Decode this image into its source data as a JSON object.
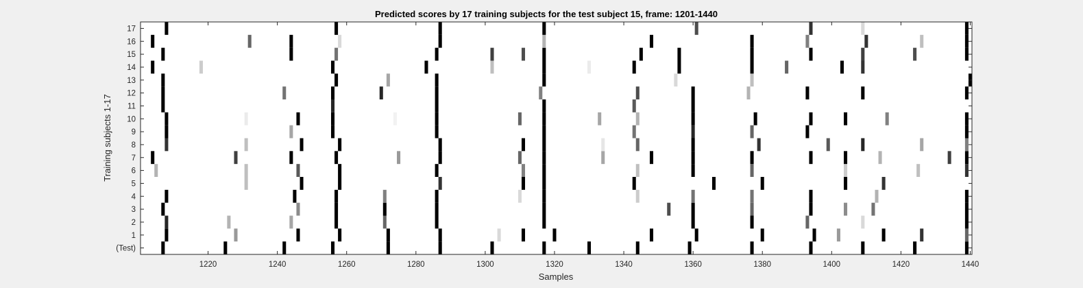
{
  "chart_data": {
    "type": "heatmap",
    "title": "Predicted scores by 17 training subjects for the test subject 15, frame: 1201-1440",
    "xlabel": "Samples",
    "ylabel": "Training subjects 1-17",
    "xlim": [
      1201,
      1440
    ],
    "x_ticks": [
      "1220",
      "1240",
      "1260",
      "1280",
      "1300",
      "1320",
      "1340",
      "1360",
      "1380",
      "1400",
      "1420",
      "1440"
    ],
    "row_labels": [
      "(Test)",
      "1",
      "2",
      "3",
      "4",
      "5",
      "6",
      "7",
      "8",
      "9",
      "10",
      "11",
      "12",
      "13",
      "14",
      "15",
      "16",
      "17"
    ],
    "colormap": "gray (white = 0, black = 1)",
    "background_value": 0,
    "marks": [
      {
        "row": "(Test)",
        "x": 1207,
        "v": 1
      },
      {
        "row": "(Test)",
        "x": 1225,
        "v": 1
      },
      {
        "row": "(Test)",
        "x": 1242,
        "v": 1
      },
      {
        "row": "(Test)",
        "x": 1256,
        "v": 1
      },
      {
        "row": "(Test)",
        "x": 1272,
        "v": 1
      },
      {
        "row": "(Test)",
        "x": 1287,
        "v": 1
      },
      {
        "row": "(Test)",
        "x": 1302,
        "v": 1
      },
      {
        "row": "(Test)",
        "x": 1317,
        "v": 1
      },
      {
        "row": "(Test)",
        "x": 1330,
        "v": 1
      },
      {
        "row": "(Test)",
        "x": 1344,
        "v": 1
      },
      {
        "row": "(Test)",
        "x": 1359,
        "v": 1
      },
      {
        "row": "(Test)",
        "x": 1377,
        "v": 1
      },
      {
        "row": "(Test)",
        "x": 1394,
        "v": 1
      },
      {
        "row": "(Test)",
        "x": 1409,
        "v": 1
      },
      {
        "row": "(Test)",
        "x": 1424,
        "v": 1
      },
      {
        "row": "(Test)",
        "x": 1439,
        "v": 1
      },
      {
        "row": "1",
        "x": 1208,
        "v": 1
      },
      {
        "row": "1",
        "x": 1228,
        "v": 0.4
      },
      {
        "row": "1",
        "x": 1246,
        "v": 1
      },
      {
        "row": "1",
        "x": 1258,
        "v": 1
      },
      {
        "row": "1",
        "x": 1272,
        "v": 1
      },
      {
        "row": "1",
        "x": 1287,
        "v": 1
      },
      {
        "row": "1",
        "x": 1304,
        "v": 0.15
      },
      {
        "row": "1",
        "x": 1311,
        "v": 1
      },
      {
        "row": "1",
        "x": 1320,
        "v": 1
      },
      {
        "row": "1",
        "x": 1348,
        "v": 1
      },
      {
        "row": "1",
        "x": 1361,
        "v": 1
      },
      {
        "row": "1",
        "x": 1380,
        "v": 1
      },
      {
        "row": "1",
        "x": 1395,
        "v": 1
      },
      {
        "row": "1",
        "x": 1402,
        "v": 0.4
      },
      {
        "row": "1",
        "x": 1415,
        "v": 1
      },
      {
        "row": "1",
        "x": 1426,
        "v": 0.8
      },
      {
        "row": "1",
        "x": 1439,
        "v": 0.6
      },
      {
        "row": "2",
        "x": 1208,
        "v": 0.85
      },
      {
        "row": "2",
        "x": 1226,
        "v": 0.3
      },
      {
        "row": "2",
        "x": 1244,
        "v": 0.35
      },
      {
        "row": "2",
        "x": 1257,
        "v": 1
      },
      {
        "row": "2",
        "x": 1271,
        "v": 0.6
      },
      {
        "row": "2",
        "x": 1286,
        "v": 1
      },
      {
        "row": "2",
        "x": 1317,
        "v": 1
      },
      {
        "row": "2",
        "x": 1360,
        "v": 1
      },
      {
        "row": "2",
        "x": 1377,
        "v": 1
      },
      {
        "row": "2",
        "x": 1393,
        "v": 0.6
      },
      {
        "row": "2",
        "x": 1409,
        "v": 0.15
      },
      {
        "row": "2",
        "x": 1439,
        "v": 1
      },
      {
        "row": "3",
        "x": 1207,
        "v": 1
      },
      {
        "row": "3",
        "x": 1246,
        "v": 0.45
      },
      {
        "row": "3",
        "x": 1257,
        "v": 1
      },
      {
        "row": "3",
        "x": 1271,
        "v": 1
      },
      {
        "row": "3",
        "x": 1286,
        "v": 1
      },
      {
        "row": "3",
        "x": 1317,
        "v": 1
      },
      {
        "row": "3",
        "x": 1353,
        "v": 0.7
      },
      {
        "row": "3",
        "x": 1360,
        "v": 1
      },
      {
        "row": "3",
        "x": 1377,
        "v": 0.6
      },
      {
        "row": "3",
        "x": 1394,
        "v": 1
      },
      {
        "row": "3",
        "x": 1404,
        "v": 0.45
      },
      {
        "row": "3",
        "x": 1412,
        "v": 0.55
      },
      {
        "row": "3",
        "x": 1439,
        "v": 1
      },
      {
        "row": "4",
        "x": 1208,
        "v": 1
      },
      {
        "row": "4",
        "x": 1245,
        "v": 1
      },
      {
        "row": "4",
        "x": 1257,
        "v": 1
      },
      {
        "row": "4",
        "x": 1271,
        "v": 0.5
      },
      {
        "row": "4",
        "x": 1286,
        "v": 1
      },
      {
        "row": "4",
        "x": 1310,
        "v": 0.15
      },
      {
        "row": "4",
        "x": 1317,
        "v": 1
      },
      {
        "row": "4",
        "x": 1344,
        "v": 0.2
      },
      {
        "row": "4",
        "x": 1360,
        "v": 0.55
      },
      {
        "row": "4",
        "x": 1377,
        "v": 0.55
      },
      {
        "row": "4",
        "x": 1394,
        "v": 1
      },
      {
        "row": "4",
        "x": 1413,
        "v": 0.3
      },
      {
        "row": "4",
        "x": 1439,
        "v": 1
      },
      {
        "row": "5",
        "x": 1231,
        "v": 0.25
      },
      {
        "row": "5",
        "x": 1247,
        "v": 1
      },
      {
        "row": "5",
        "x": 1258,
        "v": 1
      },
      {
        "row": "5",
        "x": 1287,
        "v": 0.8
      },
      {
        "row": "5",
        "x": 1311,
        "v": 1
      },
      {
        "row": "5",
        "x": 1317,
        "v": 1
      },
      {
        "row": "5",
        "x": 1343,
        "v": 1
      },
      {
        "row": "5",
        "x": 1366,
        "v": 1
      },
      {
        "row": "5",
        "x": 1380,
        "v": 1
      },
      {
        "row": "5",
        "x": 1404,
        "v": 1
      },
      {
        "row": "5",
        "x": 1415,
        "v": 0.8
      },
      {
        "row": "6",
        "x": 1205,
        "v": 0.3
      },
      {
        "row": "6",
        "x": 1231,
        "v": 0.25
      },
      {
        "row": "6",
        "x": 1246,
        "v": 0.65
      },
      {
        "row": "6",
        "x": 1258,
        "v": 1
      },
      {
        "row": "6",
        "x": 1286,
        "v": 1
      },
      {
        "row": "6",
        "x": 1311,
        "v": 0.5
      },
      {
        "row": "6",
        "x": 1317,
        "v": 1
      },
      {
        "row": "6",
        "x": 1344,
        "v": 0.25
      },
      {
        "row": "6",
        "x": 1360,
        "v": 1
      },
      {
        "row": "6",
        "x": 1377,
        "v": 0.6
      },
      {
        "row": "6",
        "x": 1404,
        "v": 0.2
      },
      {
        "row": "6",
        "x": 1425,
        "v": 0.25
      },
      {
        "row": "6",
        "x": 1439,
        "v": 0.8
      },
      {
        "row": "7",
        "x": 1204,
        "v": 1
      },
      {
        "row": "7",
        "x": 1228,
        "v": 0.75
      },
      {
        "row": "7",
        "x": 1244,
        "v": 1
      },
      {
        "row": "7",
        "x": 1257,
        "v": 1
      },
      {
        "row": "7",
        "x": 1275,
        "v": 0.4
      },
      {
        "row": "7",
        "x": 1287,
        "v": 1
      },
      {
        "row": "7",
        "x": 1310,
        "v": 0.6
      },
      {
        "row": "7",
        "x": 1317,
        "v": 1
      },
      {
        "row": "7",
        "x": 1334,
        "v": 0.35
      },
      {
        "row": "7",
        "x": 1348,
        "v": 1
      },
      {
        "row": "7",
        "x": 1360,
        "v": 1
      },
      {
        "row": "7",
        "x": 1377,
        "v": 1
      },
      {
        "row": "7",
        "x": 1394,
        "v": 1
      },
      {
        "row": "7",
        "x": 1404,
        "v": 1
      },
      {
        "row": "7",
        "x": 1414,
        "v": 0.3
      },
      {
        "row": "7",
        "x": 1434,
        "v": 0.75
      },
      {
        "row": "7",
        "x": 1439,
        "v": 1
      },
      {
        "row": "8",
        "x": 1208,
        "v": 0.8
      },
      {
        "row": "8",
        "x": 1231,
        "v": 0.25
      },
      {
        "row": "8",
        "x": 1247,
        "v": 1
      },
      {
        "row": "8",
        "x": 1258,
        "v": 1
      },
      {
        "row": "8",
        "x": 1287,
        "v": 1
      },
      {
        "row": "8",
        "x": 1311,
        "v": 1
      },
      {
        "row": "8",
        "x": 1317,
        "v": 1
      },
      {
        "row": "8",
        "x": 1334,
        "v": 0.1
      },
      {
        "row": "8",
        "x": 1344,
        "v": 0.6
      },
      {
        "row": "8",
        "x": 1360,
        "v": 1
      },
      {
        "row": "8",
        "x": 1379,
        "v": 0.8
      },
      {
        "row": "8",
        "x": 1399,
        "v": 0.65
      },
      {
        "row": "8",
        "x": 1409,
        "v": 0.85
      },
      {
        "row": "8",
        "x": 1426,
        "v": 0.35
      },
      {
        "row": "8",
        "x": 1439,
        "v": 0.5
      },
      {
        "row": "9",
        "x": 1208,
        "v": 1
      },
      {
        "row": "9",
        "x": 1244,
        "v": 0.35
      },
      {
        "row": "9",
        "x": 1256,
        "v": 1
      },
      {
        "row": "9",
        "x": 1286,
        "v": 1
      },
      {
        "row": "9",
        "x": 1317,
        "v": 1
      },
      {
        "row": "9",
        "x": 1343,
        "v": 0.55
      },
      {
        "row": "9",
        "x": 1360,
        "v": 0.85
      },
      {
        "row": "9",
        "x": 1377,
        "v": 0.6
      },
      {
        "row": "9",
        "x": 1393,
        "v": 1
      },
      {
        "row": "9",
        "x": 1439,
        "v": 1
      },
      {
        "row": "10",
        "x": 1208,
        "v": 1
      },
      {
        "row": "10",
        "x": 1231,
        "v": 0.08
      },
      {
        "row": "10",
        "x": 1246,
        "v": 1
      },
      {
        "row": "10",
        "x": 1256,
        "v": 1
      },
      {
        "row": "10",
        "x": 1274,
        "v": 0.05
      },
      {
        "row": "10",
        "x": 1286,
        "v": 1
      },
      {
        "row": "10",
        "x": 1310,
        "v": 0.6
      },
      {
        "row": "10",
        "x": 1317,
        "v": 1
      },
      {
        "row": "10",
        "x": 1333,
        "v": 0.35
      },
      {
        "row": "10",
        "x": 1344,
        "v": 0.3
      },
      {
        "row": "10",
        "x": 1360,
        "v": 1
      },
      {
        "row": "10",
        "x": 1378,
        "v": 1
      },
      {
        "row": "10",
        "x": 1394,
        "v": 1
      },
      {
        "row": "10",
        "x": 1404,
        "v": 1
      },
      {
        "row": "10",
        "x": 1416,
        "v": 0.5
      },
      {
        "row": "10",
        "x": 1439,
        "v": 1
      },
      {
        "row": "11",
        "x": 1207,
        "v": 1
      },
      {
        "row": "11",
        "x": 1256,
        "v": 0.85
      },
      {
        "row": "11",
        "x": 1286,
        "v": 1
      },
      {
        "row": "11",
        "x": 1317,
        "v": 1
      },
      {
        "row": "11",
        "x": 1343,
        "v": 0.65
      },
      {
        "row": "11",
        "x": 1360,
        "v": 1
      },
      {
        "row": "12",
        "x": 1207,
        "v": 1
      },
      {
        "row": "12",
        "x": 1242,
        "v": 0.55
      },
      {
        "row": "12",
        "x": 1256,
        "v": 1
      },
      {
        "row": "12",
        "x": 1270,
        "v": 0.85
      },
      {
        "row": "12",
        "x": 1286,
        "v": 1
      },
      {
        "row": "12",
        "x": 1316,
        "v": 0.5
      },
      {
        "row": "12",
        "x": 1344,
        "v": 0.7
      },
      {
        "row": "12",
        "x": 1360,
        "v": 1
      },
      {
        "row": "12",
        "x": 1376,
        "v": 0.3
      },
      {
        "row": "12",
        "x": 1393,
        "v": 1
      },
      {
        "row": "12",
        "x": 1409,
        "v": 1
      },
      {
        "row": "12",
        "x": 1439,
        "v": 1
      },
      {
        "row": "13",
        "x": 1207,
        "v": 1
      },
      {
        "row": "13",
        "x": 1257,
        "v": 1
      },
      {
        "row": "13",
        "x": 1272,
        "v": 0.35
      },
      {
        "row": "13",
        "x": 1286,
        "v": 1
      },
      {
        "row": "13",
        "x": 1317,
        "v": 1
      },
      {
        "row": "13",
        "x": 1355,
        "v": 0.15
      },
      {
        "row": "13",
        "x": 1377,
        "v": 0.25
      },
      {
        "row": "13",
        "x": 1440,
        "v": 1
      },
      {
        "row": "14",
        "x": 1204,
        "v": 1
      },
      {
        "row": "14",
        "x": 1218,
        "v": 0.2
      },
      {
        "row": "14",
        "x": 1256,
        "v": 1
      },
      {
        "row": "14",
        "x": 1283,
        "v": 1
      },
      {
        "row": "14",
        "x": 1302,
        "v": 0.25
      },
      {
        "row": "14",
        "x": 1317,
        "v": 1
      },
      {
        "row": "14",
        "x": 1330,
        "v": 0.08
      },
      {
        "row": "14",
        "x": 1343,
        "v": 1
      },
      {
        "row": "14",
        "x": 1356,
        "v": 1
      },
      {
        "row": "14",
        "x": 1377,
        "v": 1
      },
      {
        "row": "14",
        "x": 1387,
        "v": 0.6
      },
      {
        "row": "14",
        "x": 1403,
        "v": 1
      },
      {
        "row": "14",
        "x": 1409,
        "v": 0.8
      },
      {
        "row": "15",
        "x": 1207,
        "v": 1
      },
      {
        "row": "15",
        "x": 1244,
        "v": 1
      },
      {
        "row": "15",
        "x": 1257,
        "v": 0.55
      },
      {
        "row": "15",
        "x": 1286,
        "v": 1
      },
      {
        "row": "15",
        "x": 1302,
        "v": 0.75
      },
      {
        "row": "15",
        "x": 1311,
        "v": 0.7
      },
      {
        "row": "15",
        "x": 1317,
        "v": 1
      },
      {
        "row": "15",
        "x": 1345,
        "v": 1
      },
      {
        "row": "15",
        "x": 1356,
        "v": 1
      },
      {
        "row": "15",
        "x": 1377,
        "v": 1
      },
      {
        "row": "15",
        "x": 1394,
        "v": 1
      },
      {
        "row": "15",
        "x": 1409,
        "v": 0.75
      },
      {
        "row": "15",
        "x": 1424,
        "v": 0.7
      },
      {
        "row": "15",
        "x": 1439,
        "v": 1
      },
      {
        "row": "16",
        "x": 1204,
        "v": 1
      },
      {
        "row": "16",
        "x": 1232,
        "v": 0.6
      },
      {
        "row": "16",
        "x": 1244,
        "v": 1
      },
      {
        "row": "16",
        "x": 1258,
        "v": 0.15
      },
      {
        "row": "16",
        "x": 1287,
        "v": 1
      },
      {
        "row": "16",
        "x": 1317,
        "v": 0.3
      },
      {
        "row": "16",
        "x": 1348,
        "v": 1
      },
      {
        "row": "16",
        "x": 1377,
        "v": 1
      },
      {
        "row": "16",
        "x": 1393,
        "v": 0.5
      },
      {
        "row": "16",
        "x": 1410,
        "v": 0.8
      },
      {
        "row": "16",
        "x": 1426,
        "v": 0.25
      },
      {
        "row": "16",
        "x": 1439,
        "v": 1
      },
      {
        "row": "17",
        "x": 1208,
        "v": 1
      },
      {
        "row": "17",
        "x": 1257,
        "v": 1
      },
      {
        "row": "17",
        "x": 1287,
        "v": 1
      },
      {
        "row": "17",
        "x": 1317,
        "v": 1
      },
      {
        "row": "17",
        "x": 1361,
        "v": 0.7
      },
      {
        "row": "17",
        "x": 1394,
        "v": 0.8
      },
      {
        "row": "17",
        "x": 1409,
        "v": 0.15
      },
      {
        "row": "17",
        "x": 1439,
        "v": 1
      }
    ]
  }
}
